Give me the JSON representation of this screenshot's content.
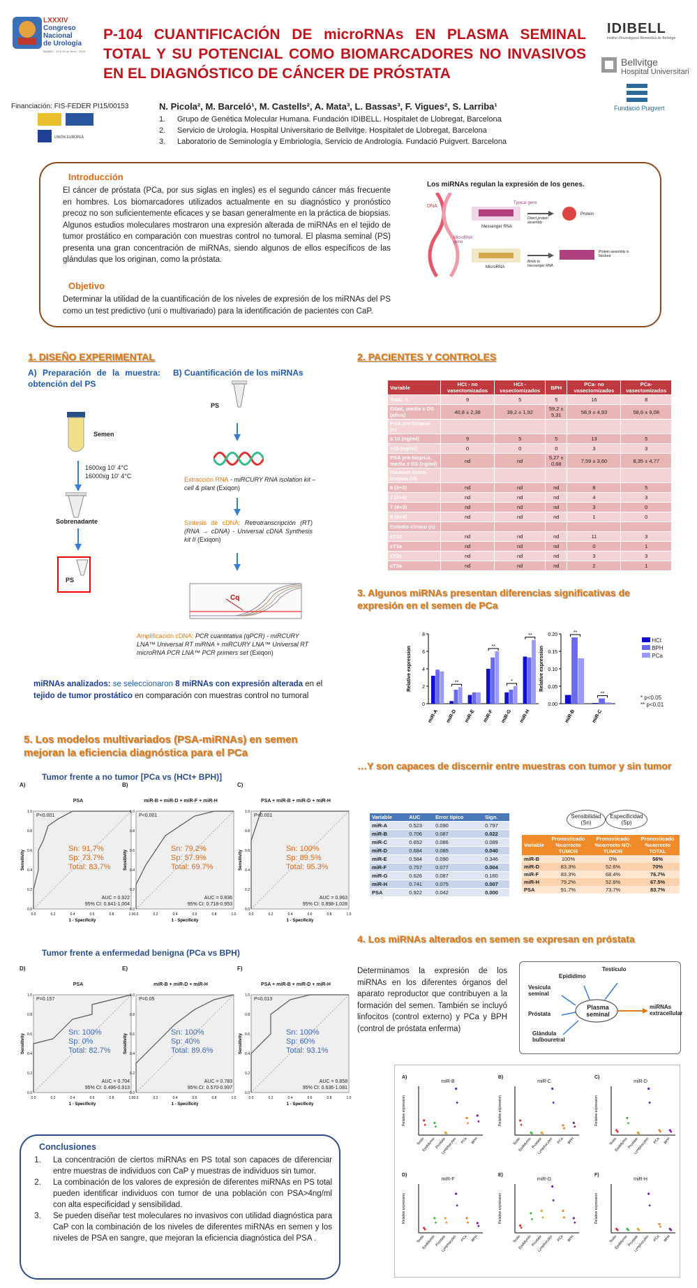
{
  "title": "P-104 CUANTIFICACIÓN DE microRNAs EN PLASMA SEMINAL TOTAL Y SU POTENCIAL COMO BIOMARCADORES NO INVASIVOS EN EL DIAGNÓSTICO DE CÁNCER DE PRÓSTATA",
  "congress": {
    "num": "LXXXIV",
    "line1": "Congreso",
    "line2": "Nacional",
    "line3": "de Urología",
    "small": "BILBAO · 12 a 15 de Junio · 2019"
  },
  "logos": {
    "idibell": "IDIBELL",
    "idibell_sub": "Institut d'Investigació Biomèdica de Bellvitge",
    "bellvitge1": "Bellvitge",
    "bellvitge2": "Hospital Universitari",
    "puigvert": "Fundació Puigvert"
  },
  "financing": "Financiación: FIS-FEDER PI15/00153",
  "authors": "N. Picola², M. Barceló¹, M. Castells², A. Mata³, L. Bassas³, F. Vigues², S. Larriba¹",
  "affiliations": [
    {
      "n": "1.",
      "t": "Grupo de Genética Molecular Humana. Fundación IDIBELL. Hospitalet de Llobregat, Barcelona"
    },
    {
      "n": "2.",
      "t": "Servicio de Urología. Hospital Universitario de Bellvitge. Hospitalet de Llobregat, Barcelona"
    },
    {
      "n": "3.",
      "t": "Laboratorio de Seminología y Embriología, Servicio de Andrología. Fundació Puigvert. Barcelona"
    }
  ],
  "intro": {
    "heading": "Introducción",
    "text": "El cáncer de próstata (PCa, por sus siglas en ingles) es el segundo cáncer más frecuente en hombres. Los biomarcadores utilizados actualmente en su diagnóstico y pronóstico precoz no son suficientemente eficaces y se basan generalmente en la práctica de biopsias. Algunos estudios moleculares mostraron una expresión alterada de miRNAs en el tejido de tumor prostático en comparación con muestras control no tumoral. El plasma seminal (PS) presenta una gran concentración de miRNAs, siendo algunos de ellos específicos de las glándulas que los originan, como la próstata.",
    "objective_heading": "Objetivo",
    "objective": "Determinar la utilidad de la cuantificación de los niveles de expresión de los miRNAs del PS como un test predictivo (uni o multivariado) para la identificación de pacientes con CaP.",
    "fig_title": "Los miRNAs regulan la expresión de los genes.",
    "fig_labels": {
      "dna": "DNA",
      "typical": "Typical gene",
      "mrna": "Messenger RNA",
      "direct": "Direct protein assembly",
      "protein": "Protein",
      "microgene": "MicroRNA gene",
      "mirna": "MicroRNA",
      "binds": "Binds to messenger RNA",
      "blocked": "Protein assembly is blocked"
    }
  },
  "s1": {
    "title": "1. DISEÑO EXPERIMENTAL",
    "a": "A)  Preparación  de  la  muestra: obtención del PS",
    "b": "B)  Cuantificación de los miRNAs",
    "semen": "Semen",
    "spin1": "1600xg 10' 4°C",
    "spin2": "16000xg 10' 4°C",
    "sobre": "Sobrenadante",
    "ps": "PS",
    "ps2": "PS",
    "ext_h": "Extracción RNA",
    "ext_t": " - miRCURY RNA isolation kit – cell & plant ",
    "ext_e": "(Exiqon)",
    "syn_h": "Síntesis  de  cDNA:",
    "syn_t": " Retrotranscripción (RT)   (RNA  →  cDNA)  - Universal cDNA Synthesis kit II ",
    "syn_e": "(Exiqon)",
    "cq": "Cq",
    "amp_h": "Amplificación cDNA:",
    "amp_t": " PCR cuantitativa (qPCR) - miRCURY LNA™ Universal RT miRNA + miRCURY LNA™ Universal RT microRNA PCR LNA™ PCR primers set ",
    "amp_e": "(Exiqon)",
    "mirnas_a": "miRNAs analizados:",
    "mirnas_b": " se seleccionaron ",
    "mirnas_c": "8 miRNAs con expresión alterada",
    "mirnas_d": " en el ",
    "mirnas_e": "tejido de tumor prostático",
    "mirnas_f": " en comparación con muestras control no tumoral"
  },
  "s2": {
    "title": "2. PACIENTES Y CONTROLES",
    "header": [
      "Variable",
      "HCt - no vasectomizados",
      "HCt - vasectomizados",
      "BPH",
      "PCa- no vasectomizados",
      "PCa- vasectomizados"
    ],
    "rows": [
      [
        "Total, n",
        "9",
        "5",
        "5",
        "16",
        "8"
      ],
      [
        "Edad, media ± DS (años)",
        "40,8 ± 2,38",
        "39,2 ± 1,92",
        "59,2 ± 5,31",
        "58,9 ± 4,93",
        "58,6 ± 9,08"
      ],
      [
        "PSA pre-biopsia (n)",
        "",
        "",
        "",
        "",
        ""
      ],
      [
        "≤ 10 (ng/ml)",
        "9",
        "5",
        "5",
        "13",
        "5"
      ],
      [
        ">10 (ng/ml)",
        "0",
        "0",
        "0",
        "3",
        "3"
      ],
      [
        "PSA pre-biopsia, media ± DS (ng/ml)",
        "nd",
        "nd",
        "5,27 ± 0,68",
        "7,59 ± 3,60",
        "8,35 ± 4,77"
      ],
      [
        "Gleason score - biopsia (n)",
        "",
        "",
        "",
        "",
        ""
      ],
      [
        "6 (3+3)",
        "nd",
        "nd",
        "nd",
        "8",
        "5"
      ],
      [
        "7 (3+4)",
        "nd",
        "nd",
        "nd",
        "4",
        "3"
      ],
      [
        "7 (4+3)",
        "nd",
        "nd",
        "nd",
        "3",
        "0"
      ],
      [
        "8 (4+4)",
        "nd",
        "nd",
        "nd",
        "1",
        "0"
      ],
      [
        "Estadio clínico (n)",
        "",
        "",
        "",
        "",
        ""
      ],
      [
        "cT1c",
        "nd",
        "nd",
        "nd",
        "11",
        "3"
      ],
      [
        "cT2a",
        "nd",
        "nd",
        "nd",
        "0",
        "1"
      ],
      [
        "cT2c",
        "nd",
        "nd",
        "nd",
        "3",
        "3"
      ],
      [
        "cT3a",
        "nd",
        "nd",
        "nd",
        "2",
        "1"
      ]
    ]
  },
  "s3": {
    "title": "3. Algunos miRNAs presentan diferencias significativas de expresión en el semen de PCa",
    "ylabel": "Relative expression",
    "legend": [
      "HCt",
      "BPH",
      "PCa"
    ],
    "colors": [
      "#1010d0",
      "#6a6af0",
      "#9a9af8"
    ],
    "note1": "* p<0.05",
    "note2": "** p<0.01"
  },
  "chart_data": [
    {
      "type": "bar",
      "ylabel": "Relative expression",
      "ylim": [
        0,
        8
      ],
      "categories": [
        "miR-A",
        "miR-D",
        "miR-E",
        "miR-F",
        "miR-G",
        "miR-H"
      ],
      "series": [
        {
          "name": "HCt",
          "values": [
            3.2,
            0.3,
            1.0,
            4.0,
            1.3,
            5.4
          ]
        },
        {
          "name": "BPH",
          "values": [
            3.9,
            1.6,
            1.3,
            5.3,
            1.6,
            5.3
          ]
        },
        {
          "name": "PCa",
          "values": [
            3.7,
            1.9,
            1.3,
            6.0,
            2.0,
            7.3
          ]
        }
      ],
      "significance": [
        "",
        "**",
        "",
        "**",
        "*",
        "**"
      ]
    },
    {
      "type": "bar",
      "ylabel": "Relative expression",
      "ylim": [
        0,
        0.2
      ],
      "categories": [
        "miR-B",
        "miR-C"
      ],
      "series": [
        {
          "name": "HCt",
          "values": [
            0.025,
            0.002
          ]
        },
        {
          "name": "BPH",
          "values": [
            0.19,
            0.015
          ]
        },
        {
          "name": "PCa",
          "values": [
            0.13,
            0.004
          ]
        }
      ],
      "significance": [
        "**",
        "**"
      ]
    }
  ],
  "s5": {
    "title": "5. Los modelos multivariados (PSA-miRNAs) en semen mejoran la eficiencia diagnóstica para el PCa",
    "sub1": "Tumor frente a no tumor [PCa vs (HCt+ BPH)]",
    "sub2": "Tumor frente a enfermedad benigna (PCa vs BPH)",
    "xlab": "1 - Specificity",
    "ylab": "Sensitivity",
    "ticks": [
      "0.0",
      "0.2",
      "0.4",
      "0.6",
      "0.8",
      "1.0"
    ],
    "panels": [
      {
        "letter": "A)",
        "label": "PSA",
        "p": "P<0.001",
        "sn": "Sn:   91.7%",
        "sp": "Sp:   73.7%",
        "tot": "Total: 83.7%",
        "auc": "AUC = 0.922",
        "ci": "95% CI: 0.841-1.004",
        "col": "#d96a1a"
      },
      {
        "letter": "B)",
        "label": "miR-B + miR-D + miR-F + miR-H",
        "p": "P<0.001",
        "sn": "Sn:   79.2%",
        "sp": "Sp:   57.9%",
        "tot": "Total: 69.7%",
        "auc": "AUC = 0.836",
        "ci": "95% CI: 0.718-0.953",
        "col": "#d96a1a"
      },
      {
        "letter": "C)",
        "label": "PSA + miR-B + miR-D + miR-H",
        "p": "P<0.001",
        "sn": "Sn:   100%",
        "sp": "Sp:   89.5%",
        "tot": "Total: 95.3%",
        "auc": "AUC = 0.963",
        "ci": "95% CI: 0.898-1.028",
        "col": "#d96a1a"
      },
      {
        "letter": "D)",
        "label": "PSA",
        "p": "P=0.157",
        "sn": "Sn:   100%",
        "sp": "Sp:   0%",
        "tot": "Total: 82.7%",
        "auc": "AUC = 0.704",
        "ci": "95% CI: 0.496-0.913",
        "col": "#3a6ab8"
      },
      {
        "letter": "E)",
        "label": "miR-B + miR-D + miR-H",
        "p": "P=0.05",
        "sn": "Sn:   100%",
        "sp": "Sp:   40%",
        "tot": "Total: 89.6%",
        "auc": "AUC = 0.783",
        "ci": "95% CI: 0.570-0.997",
        "col": "#3a6ab8"
      },
      {
        "letter": "F)",
        "label": "PSA + miR-B + miR-D + miR-H",
        "p": "P=0.013",
        "sn": "Sn:   100%",
        "sp": "Sp:   60%",
        "tot": "Total: 93.1%",
        "auc": "AUC = 0.858",
        "ci": "95% CI: 0.636-1.081",
        "col": "#3a6ab8"
      }
    ]
  },
  "s6": {
    "title": "…Y son capaces de discernir entre muestras con tumor y sin tumor",
    "auc_header": [
      "Variable",
      "AUC",
      "Error típico",
      "Sign."
    ],
    "auc_rows": [
      [
        "miR-A",
        "0.523",
        "0.090",
        "0.797"
      ],
      [
        "miR-B",
        "0.706",
        "0.087",
        "0.022"
      ],
      [
        "miR-C",
        "0.652",
        "0.086",
        "0.089"
      ],
      [
        "miR-D",
        "0.684",
        "0.085",
        "0.040"
      ],
      [
        "miR-E",
        "0.584",
        "0.090",
        "0.346"
      ],
      [
        "miR-F",
        "0.757",
        "0.077",
        "0.004"
      ],
      [
        "miR-G",
        "0.626",
        "0.087",
        "0.160"
      ],
      [
        "miR-H",
        "0.741",
        "0.075",
        "0.007"
      ],
      [
        "PSA",
        "0.922",
        "0.042",
        "0.000"
      ]
    ],
    "bubble1": "Sensibilidad (Sn)",
    "bubble2": "Especificidad (Sp)",
    "sen_header": [
      "Variable",
      "Pronosticado %correcto TUMOR",
      "Pronosticado %correcto NO-TUMOR",
      "Pronosticado %correcto TOTAL"
    ],
    "sen_rows": [
      [
        "miR-B",
        "100%",
        "0%",
        "56%"
      ],
      [
        "miR-D",
        "83.3%",
        "52.6%",
        "70%"
      ],
      [
        "miR-F",
        "83.3%",
        "68.4%",
        "76.7%"
      ],
      [
        "miR-H",
        "79.2%",
        "52.6%",
        "67.5%"
      ],
      [
        "PSA",
        "91.7%",
        "73.7%",
        "83.7%"
      ]
    ]
  },
  "s4": {
    "title": "4. Los miRNAs alterados en semen se expresan en próstata",
    "text": "Determinamos la expresión de los miRNAs en los diferentes órganos del aparato reproductor que contribuyen a la formación del semen. También se incluyó linfocitos (control externo) y PCa y BPH (control de próstata enferma)",
    "diagram": {
      "epi": "Epidídimo",
      "test": "Testículo",
      "ves": "Vesícula seminal",
      "pro": "Próstata",
      "glan": "Glándula bulbouretral",
      "plasma": "Plasma seminal",
      "mir": "miRNAs extracellular"
    },
    "panels": [
      {
        "letter": "A)",
        "name": "miR-B"
      },
      {
        "letter": "B)",
        "name": "miR-C"
      },
      {
        "letter": "C)",
        "name": "miR-D"
      },
      {
        "letter": "D)",
        "name": "miR-F"
      },
      {
        "letter": "E)",
        "name": "miR-G"
      },
      {
        "letter": "F)",
        "name": "miR-H"
      }
    ],
    "xcats": [
      "Testis",
      "Epididymis",
      "Prostate",
      "Lymphocytes",
      "PCa",
      "BPH"
    ],
    "ylabel": "Relative expression"
  },
  "conclusions": {
    "heading": "Conclusiones",
    "items": [
      "La concentración de ciertos miRNAs en PS total son capaces de diferenciar entre muestras de individuos con CaP y muestras de individuos sin tumor.",
      "La combinación de los valores de expresión de diferentes miRNAs en PS total pueden identificar individuos con tumor de una población con PSA>4ng/ml con alta especificidad y sensibilidad.",
      "Se pueden diseñar test moleculares no invasivos con utilidad diagnóstica para CaP con la combinación de los niveles de diferentes miRNAs en semen y los niveles de PSA en sangre, que mejoran la eficiencia diagnóstica del PSA ."
    ]
  }
}
